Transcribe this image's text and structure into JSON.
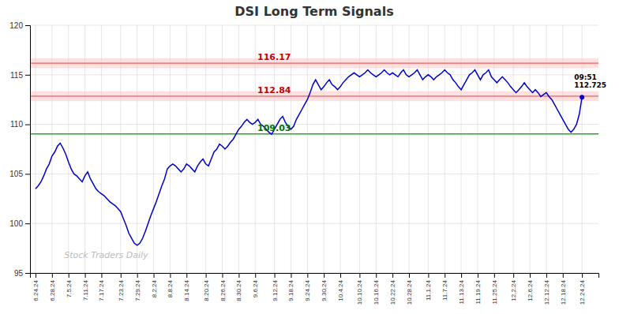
{
  "chart_data": {
    "type": "line",
    "title": "DSI Long Term Signals",
    "categories": [
      "6.24.24",
      null,
      null,
      null,
      null,
      null,
      "6.28.24",
      null,
      null,
      null,
      null,
      null,
      "7.5.24",
      null,
      null,
      null,
      null,
      null,
      "7.11.24",
      null,
      null,
      null,
      null,
      null,
      "7.17.24",
      null,
      null,
      null,
      null,
      null,
      null,
      "7.23.24",
      null,
      null,
      null,
      null,
      null,
      "7.29.24",
      null,
      null,
      null,
      null,
      null,
      "8.2.24",
      null,
      null,
      null,
      null,
      null,
      "8.8.24",
      null,
      null,
      null,
      null,
      null,
      "8.14.24",
      null,
      null,
      null,
      null,
      null,
      null,
      "8.20.24",
      null,
      null,
      null,
      null,
      null,
      "8.26.24",
      null,
      null,
      null,
      null,
      null,
      "8.30.24",
      null,
      null,
      null,
      null,
      null,
      "9.6.24",
      null,
      null,
      null,
      null,
      null,
      null,
      "9.12.24",
      null,
      null,
      null,
      null,
      null,
      "9.18.24",
      null,
      null,
      null,
      null,
      null,
      "9.24.24",
      null,
      null,
      null,
      null,
      null,
      "9.30.24",
      null,
      null,
      null,
      null,
      null,
      "10.4.24",
      null,
      null,
      null,
      null,
      null,
      null,
      "10.10.24",
      null,
      null,
      null,
      null,
      null,
      "10.16.24",
      null,
      null,
      null,
      null,
      null,
      "10.22.24",
      null,
      null,
      null,
      null,
      null,
      "10.28.24",
      null,
      null,
      null,
      null,
      null,
      null,
      "11.1.24",
      null,
      null,
      null,
      null,
      null,
      "11.7.24",
      null,
      null,
      null,
      null,
      null,
      "11.13.24",
      null,
      null,
      null,
      null,
      null,
      "11.19.24",
      null,
      null,
      null,
      null,
      null,
      "11.25.24",
      null,
      null,
      null,
      null,
      null,
      null,
      "12.2.24",
      null,
      null,
      null,
      null,
      null,
      "12.6.24",
      null,
      null,
      null,
      null,
      null,
      "12.12.24",
      null,
      null,
      null,
      null,
      null,
      "12.18.24",
      null,
      null,
      null,
      null,
      null,
      null,
      "12.24.24"
    ],
    "series": [
      {
        "color": "#0000cc",
        "values": [
          103.5,
          103.8,
          104.2,
          104.8,
          105.5,
          106.0,
          106.8,
          107.2,
          107.8,
          108.1,
          107.6,
          107.0,
          106.2,
          105.5,
          105.0,
          104.8,
          104.5,
          104.2,
          104.8,
          105.2,
          104.5,
          104.0,
          103.5,
          103.2,
          103.0,
          102.8,
          102.5,
          102.2,
          102.0,
          101.8,
          101.5,
          101.2,
          100.5,
          99.8,
          99.0,
          98.5,
          98.0,
          97.8,
          98.0,
          98.5,
          99.2,
          100.0,
          100.8,
          101.5,
          102.2,
          103.0,
          103.8,
          104.5,
          105.5,
          105.8,
          106.0,
          105.8,
          105.5,
          105.2,
          105.5,
          106.0,
          105.8,
          105.5,
          105.2,
          105.8,
          106.2,
          106.5,
          106.0,
          105.8,
          106.5,
          107.2,
          107.5,
          108.0,
          107.8,
          107.5,
          107.8,
          108.2,
          108.5,
          109.0,
          109.5,
          109.8,
          110.2,
          110.5,
          110.2,
          110.0,
          110.2,
          110.5,
          110.0,
          109.8,
          109.5,
          109.2,
          109.0,
          109.5,
          110.0,
          110.5,
          110.8,
          110.2,
          109.8,
          109.5,
          109.8,
          110.5,
          111.0,
          111.5,
          112.0,
          112.5,
          113.2,
          114.0,
          114.5,
          114.0,
          113.5,
          113.8,
          114.2,
          114.5,
          114.0,
          113.8,
          113.5,
          113.8,
          114.2,
          114.5,
          114.8,
          115.0,
          115.2,
          115.0,
          114.8,
          115.0,
          115.2,
          115.5,
          115.2,
          115.0,
          114.8,
          115.0,
          115.2,
          115.5,
          115.2,
          115.0,
          115.2,
          115.0,
          114.8,
          115.2,
          115.5,
          115.0,
          114.8,
          115.0,
          115.2,
          115.5,
          115.0,
          114.5,
          114.8,
          115.0,
          114.8,
          114.5,
          114.8,
          115.0,
          115.2,
          115.5,
          115.2,
          115.0,
          114.5,
          114.2,
          113.8,
          113.5,
          114.0,
          114.5,
          115.0,
          115.2,
          115.5,
          115.0,
          114.5,
          115.0,
          115.2,
          115.5,
          114.8,
          114.5,
          114.2,
          114.5,
          114.8,
          114.5,
          114.2,
          113.8,
          113.5,
          113.2,
          113.5,
          113.8,
          114.2,
          113.8,
          113.5,
          113.2,
          113.5,
          113.2,
          112.8,
          113.0,
          113.2,
          112.8,
          112.5,
          112.0,
          111.5,
          111.0,
          110.5,
          110.0,
          109.5,
          109.2,
          109.5,
          110.0,
          111.0,
          112.725
        ]
      }
    ],
    "ylim": [
      95,
      120
    ],
    "yticks": [
      95,
      100,
      105,
      110,
      115,
      120
    ],
    "grid": true,
    "hlines": [
      {
        "value": 116.17,
        "label": "116.17",
        "color": "#dd4444",
        "label_color": "#cc0000",
        "band": [
          115.67,
          116.67
        ],
        "band_color": "#ffcccc"
      },
      {
        "value": 112.84,
        "label": "112.84",
        "color": "#dd4444",
        "label_color": "#cc0000",
        "band": [
          112.34,
          113.34
        ],
        "band_color": "#ffcccc"
      },
      {
        "value": 109.03,
        "label": "109.03",
        "color": "#22aa22",
        "label_color": "#007700"
      }
    ],
    "annotations": [
      {
        "text": "09:51\n112.725"
      }
    ],
    "watermark": "Stock Traders Daily"
  }
}
